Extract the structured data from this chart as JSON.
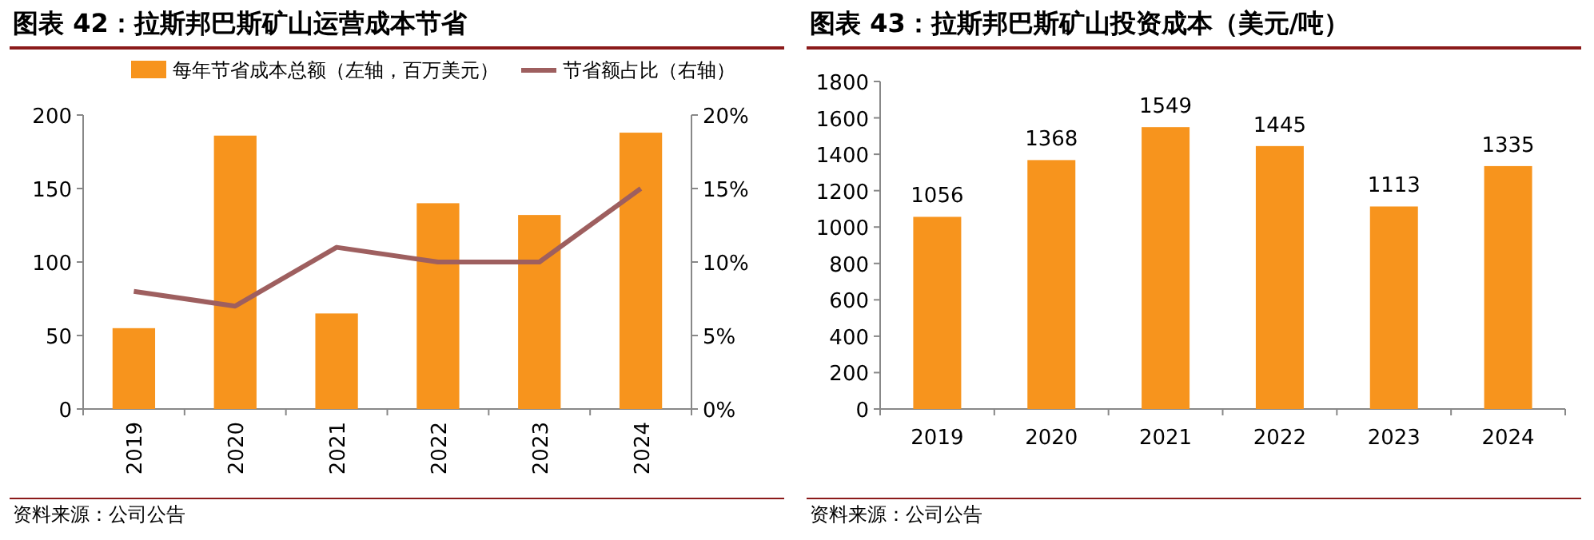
{
  "chart_data": [
    {
      "type": "bar",
      "title": "图表 42：拉斯邦巴斯矿山运营成本节省",
      "categories": [
        "2019",
        "2020",
        "2021",
        "2022",
        "2023",
        "2024"
      ],
      "series": [
        {
          "name": "每年节省成本总额（左轴，百万美元）",
          "color": "#f7941d",
          "values": [
            55,
            186,
            65,
            140,
            132,
            188
          ]
        },
        {
          "name": "节省额占比（右轴）",
          "type": "line",
          "axis": "y2",
          "color": "#9e5f5f",
          "values": [
            8,
            7,
            11,
            10,
            10,
            15
          ]
        }
      ],
      "ylim": [
        0,
        200
      ],
      "yticks": [
        0,
        50,
        100,
        150,
        200
      ],
      "y2lim": [
        0,
        20
      ],
      "y2ticks": [
        {
          "value": 0,
          "label": "0%"
        },
        {
          "value": 5,
          "label": "5%"
        },
        {
          "value": 10,
          "label": "10%"
        },
        {
          "value": 15,
          "label": "15%"
        },
        {
          "value": 20,
          "label": "20%"
        }
      ],
      "legend": "top",
      "grid": false,
      "marker": "none",
      "annotations": [
        "资料来源：公司公告"
      ]
    },
    {
      "type": "bar",
      "title": "图表 43：拉斯邦巴斯矿山投资成本（美元/吨）",
      "categories": [
        "2019",
        "2020",
        "2021",
        "2022",
        "2023",
        "2024"
      ],
      "values": [
        1056,
        1368,
        1549,
        1445,
        1113,
        1335
      ],
      "color": "#f7941d",
      "ylim": [
        0,
        1800
      ],
      "yticks": [
        0,
        200,
        400,
        600,
        800,
        1000,
        1200,
        1400,
        1600,
        1800
      ],
      "data_labels": true,
      "grid": false,
      "annotations": [
        "资料来源：公司公告"
      ]
    }
  ]
}
